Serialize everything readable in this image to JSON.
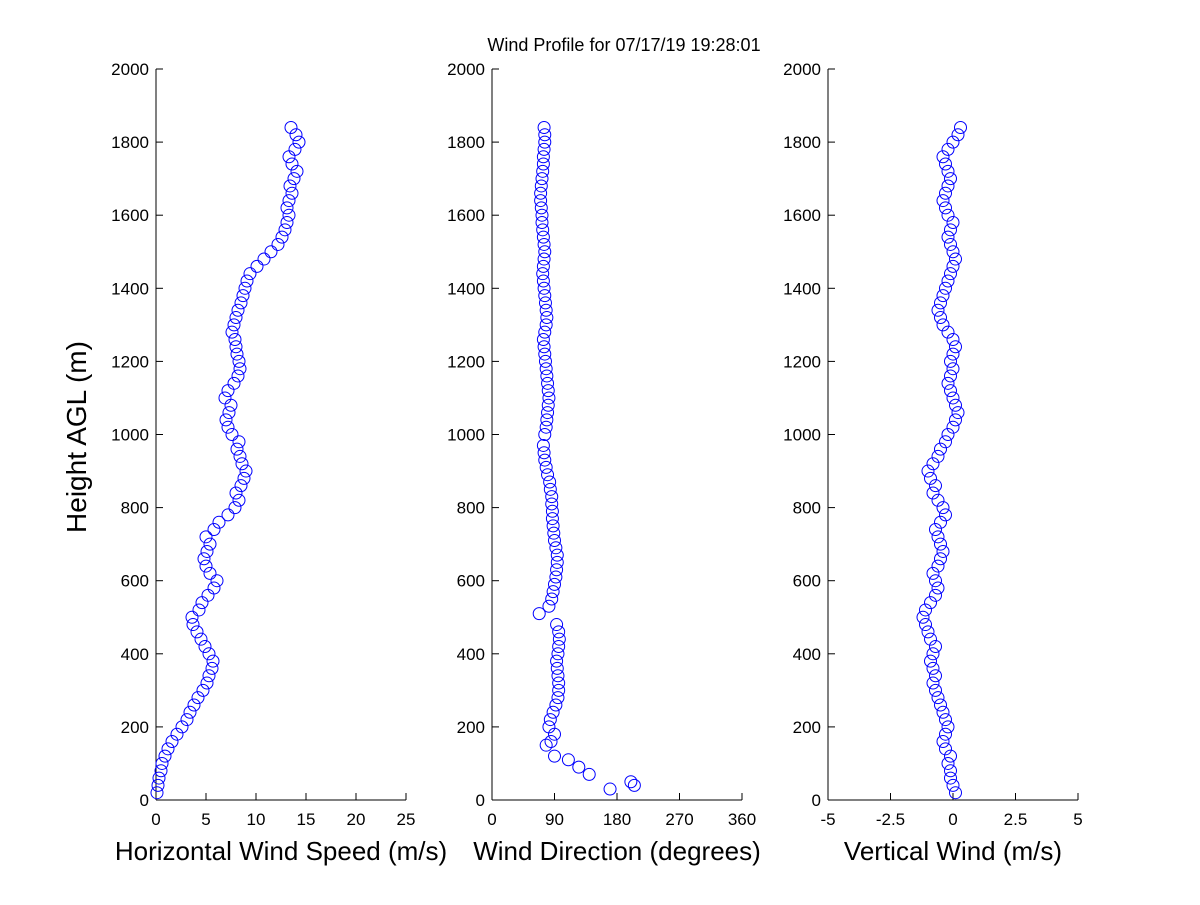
{
  "chart_data": [
    {
      "type": "scatter",
      "title": "Wind Profile for  07/17/19 19:28:01",
      "xlabel": "Horizontal Wind Speed (m/s)",
      "ylabel": "Height AGL (m)",
      "xlim": [
        0,
        25
      ],
      "ylim": [
        0,
        2000
      ],
      "xticks": [
        "0",
        "5",
        "10",
        "15",
        "20",
        "25"
      ],
      "yticks": [
        "0",
        "200",
        "400",
        "600",
        "800",
        "1000",
        "1200",
        "1400",
        "1600",
        "1800",
        "2000"
      ],
      "marker": "circle",
      "marker_color": "#0000ff",
      "series": [
        {
          "x": [
            0.1,
            0.2,
            0.3,
            0.5,
            0.6,
            0.9,
            1.2,
            1.6,
            2.1,
            2.6,
            3.1,
            3.4,
            3.8,
            4.2,
            4.7,
            5.1,
            5.3,
            5.6,
            5.7,
            5.3,
            4.9,
            4.5,
            4.1,
            3.7,
            3.6,
            4.3,
            4.6,
            5.2,
            5.8,
            6.1,
            5.4,
            5.0,
            4.8,
            5.1,
            5.4,
            5.0,
            5.8,
            6.3,
            7.2,
            7.9,
            8.3,
            8.0,
            8.5,
            8.8,
            9.0,
            8.6,
            8.4,
            8.1,
            8.3,
            7.6,
            7.2,
            7.0,
            7.3,
            7.5,
            6.9,
            7.2,
            7.8,
            8.2,
            8.4,
            8.3,
            8.1,
            8.0,
            7.9,
            7.6,
            7.8,
            8.0,
            8.2,
            8.5,
            8.7,
            8.9,
            9.1,
            9.4,
            10.1,
            10.8,
            11.5,
            12.2,
            12.6,
            12.9,
            13.1,
            13.3,
            13.1,
            13.3,
            13.6,
            13.4,
            13.8,
            14.1,
            13.6,
            13.3,
            13.9,
            14.3,
            14.0,
            13.5
          ],
          "y": [
            20,
            40,
            60,
            80,
            100,
            120,
            140,
            160,
            180,
            200,
            220,
            240,
            260,
            280,
            300,
            320,
            340,
            360,
            380,
            400,
            420,
            440,
            460,
            480,
            500,
            520,
            540,
            560,
            580,
            600,
            620,
            640,
            660,
            680,
            700,
            720,
            740,
            760,
            780,
            800,
            820,
            840,
            860,
            880,
            900,
            920,
            940,
            960,
            980,
            1000,
            1020,
            1040,
            1060,
            1080,
            1100,
            1120,
            1140,
            1160,
            1180,
            1200,
            1220,
            1240,
            1260,
            1280,
            1300,
            1320,
            1340,
            1360,
            1380,
            1400,
            1420,
            1440,
            1460,
            1480,
            1500,
            1520,
            1540,
            1560,
            1580,
            1600,
            1620,
            1640,
            1660,
            1680,
            1700,
            1720,
            1740,
            1760,
            1780,
            1800,
            1820,
            1840
          ]
        }
      ]
    },
    {
      "type": "scatter",
      "xlabel": "Wind Direction (degrees)",
      "xlim": [
        0,
        360
      ],
      "ylim": [
        0,
        2000
      ],
      "xticks": [
        "0",
        "90",
        "180",
        "270",
        "360"
      ],
      "yticks": [
        "0",
        "200",
        "400",
        "600",
        "800",
        "1000",
        "1200",
        "1400",
        "1600",
        "1800",
        "2000"
      ],
      "marker": "circle",
      "marker_color": "#0000ff",
      "series": [
        {
          "x": [
            205,
            200,
            170,
            140,
            125,
            110,
            90,
            78,
            85,
            90,
            82,
            84,
            88,
            92,
            95,
            96,
            96,
            95,
            94,
            93,
            95,
            96,
            97,
            96,
            93,
            68,
            82,
            86,
            88,
            90,
            92,
            93,
            94,
            94,
            92,
            90,
            89,
            88,
            87,
            87,
            86,
            86,
            84,
            83,
            80,
            78,
            76,
            75,
            74,
            76,
            78,
            79,
            80,
            81,
            82,
            81,
            80,
            79,
            78,
            77,
            76,
            75,
            74,
            76,
            78,
            79,
            78,
            77,
            76,
            75,
            74,
            73,
            74,
            75,
            76,
            75,
            74,
            73,
            72,
            72,
            71,
            70,
            70,
            71,
            72,
            73,
            74,
            74,
            75,
            76,
            76,
            75
          ],
          "y": [
            40,
            50,
            30,
            70,
            90,
            110,
            120,
            150,
            160,
            180,
            200,
            220,
            240,
            260,
            280,
            300,
            320,
            340,
            360,
            380,
            400,
            420,
            440,
            460,
            480,
            510,
            530,
            550,
            570,
            590,
            610,
            630,
            650,
            670,
            690,
            710,
            730,
            750,
            770,
            790,
            810,
            830,
            850,
            870,
            890,
            910,
            930,
            950,
            970,
            1000,
            1020,
            1040,
            1060,
            1080,
            1100,
            1120,
            1140,
            1160,
            1180,
            1200,
            1220,
            1240,
            1260,
            1280,
            1300,
            1320,
            1340,
            1360,
            1380,
            1400,
            1420,
            1440,
            1460,
            1480,
            1500,
            1520,
            1540,
            1560,
            1580,
            1600,
            1620,
            1640,
            1660,
            1680,
            1700,
            1720,
            1740,
            1760,
            1780,
            1800,
            1820,
            1840
          ]
        }
      ]
    },
    {
      "type": "scatter",
      "xlabel": "Vertical Wind (m/s)",
      "xlim": [
        -5,
        5
      ],
      "ylim": [
        0,
        2000
      ],
      "xticks": [
        "-5",
        "-2.5",
        "0",
        "2.5",
        "5"
      ],
      "yticks": [
        "0",
        "200",
        "400",
        "600",
        "800",
        "1000",
        "1200",
        "1400",
        "1600",
        "1800",
        "2000"
      ],
      "marker": "circle",
      "marker_color": "#0000ff",
      "series": [
        {
          "x": [
            0.1,
            0.0,
            -0.1,
            -0.1,
            -0.2,
            -0.1,
            -0.3,
            -0.4,
            -0.3,
            -0.2,
            -0.3,
            -0.4,
            -0.5,
            -0.6,
            -0.7,
            -0.8,
            -0.7,
            -0.8,
            -0.9,
            -0.8,
            -0.7,
            -0.9,
            -1.0,
            -1.1,
            -1.2,
            -1.1,
            -0.9,
            -0.7,
            -0.6,
            -0.7,
            -0.8,
            -0.6,
            -0.5,
            -0.4,
            -0.5,
            -0.6,
            -0.7,
            -0.5,
            -0.3,
            -0.4,
            -0.6,
            -0.8,
            -0.7,
            -0.9,
            -1.0,
            -0.8,
            -0.6,
            -0.5,
            -0.3,
            -0.2,
            0.0,
            0.1,
            0.2,
            0.1,
            0.0,
            -0.1,
            -0.2,
            -0.1,
            0.0,
            -0.1,
            0.0,
            0.1,
            0.0,
            -0.2,
            -0.4,
            -0.5,
            -0.6,
            -0.5,
            -0.4,
            -0.3,
            -0.2,
            -0.1,
            0.0,
            0.1,
            0.0,
            -0.1,
            -0.2,
            -0.1,
            0.0,
            -0.2,
            -0.3,
            -0.4,
            -0.3,
            -0.2,
            -0.1,
            -0.2,
            -0.3,
            -0.4,
            -0.2,
            0.0,
            0.2,
            0.3
          ],
          "y": [
            20,
            40,
            60,
            80,
            100,
            120,
            140,
            160,
            180,
            200,
            220,
            240,
            260,
            280,
            300,
            320,
            340,
            360,
            380,
            400,
            420,
            440,
            460,
            480,
            500,
            520,
            540,
            560,
            580,
            600,
            620,
            640,
            660,
            680,
            700,
            720,
            740,
            760,
            780,
            800,
            820,
            840,
            860,
            880,
            900,
            920,
            940,
            960,
            980,
            1000,
            1020,
            1040,
            1060,
            1080,
            1100,
            1120,
            1140,
            1160,
            1180,
            1200,
            1220,
            1240,
            1260,
            1280,
            1300,
            1320,
            1340,
            1360,
            1380,
            1400,
            1420,
            1440,
            1460,
            1480,
            1500,
            1520,
            1540,
            1560,
            1580,
            1600,
            1620,
            1640,
            1660,
            1680,
            1700,
            1720,
            1740,
            1760,
            1780,
            1800,
            1820,
            1840
          ]
        }
      ]
    }
  ]
}
